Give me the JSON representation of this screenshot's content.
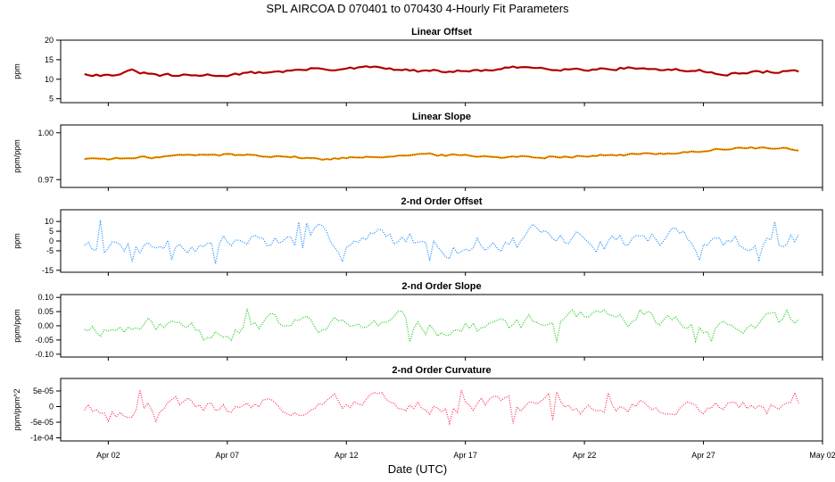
{
  "title": "SPL   AIRCOA D   070401 to 070430   4-Hourly Fit Parameters",
  "xlabel": "Date (UTC)",
  "chart_data": {
    "type": "line",
    "x_range": [
      "2007-03-31",
      "2007-05-02"
    ],
    "x_ticks": [
      "Apr 02",
      "Apr 07",
      "Apr 12",
      "Apr 17",
      "Apr 22",
      "Apr 27",
      "May 02"
    ],
    "x_tick_dates": [
      "2007-04-02",
      "2007-04-07",
      "2007-04-12",
      "2007-04-17",
      "2007-04-22",
      "2007-04-27",
      "2007-05-02"
    ],
    "data_start": "2007-04-01",
    "data_end": "2007-05-01",
    "sample_interval_hours": 4,
    "panels": [
      {
        "title": "Linear Offset",
        "ylabel": "ppm",
        "ylim": [
          4,
          20
        ],
        "yticks": [
          5,
          10,
          15,
          20
        ],
        "ytick_labels": [
          "5",
          "10",
          "15",
          "20"
        ],
        "color": "#cc0000",
        "line_color": "#000000",
        "anchors": [
          [
            "2007-04-01",
            11.5
          ],
          [
            "2007-04-02",
            11.0
          ],
          [
            "2007-04-03",
            12.0
          ],
          [
            "2007-04-04",
            11.0
          ],
          [
            "2007-04-05",
            10.8
          ],
          [
            "2007-04-06",
            11.0
          ],
          [
            "2007-04-07",
            11.2
          ],
          [
            "2007-04-08",
            11.5
          ],
          [
            "2007-04-09",
            12.0
          ],
          [
            "2007-04-10",
            12.3
          ],
          [
            "2007-04-11",
            12.8
          ],
          [
            "2007-04-12",
            12.5
          ],
          [
            "2007-04-13",
            13.0
          ],
          [
            "2007-04-14",
            12.5
          ],
          [
            "2007-04-15",
            12.0
          ],
          [
            "2007-04-16",
            12.0
          ],
          [
            "2007-04-17",
            12.0
          ],
          [
            "2007-04-18",
            12.3
          ],
          [
            "2007-04-19",
            12.8
          ],
          [
            "2007-04-20",
            13.0
          ],
          [
            "2007-04-21",
            12.8
          ],
          [
            "2007-04-22",
            12.5
          ],
          [
            "2007-04-23",
            12.8
          ],
          [
            "2007-04-24",
            13.0
          ],
          [
            "2007-04-25",
            12.5
          ],
          [
            "2007-04-26",
            12.3
          ],
          [
            "2007-04-27",
            12.0
          ],
          [
            "2007-04-28",
            11.5
          ],
          [
            "2007-04-29",
            11.6
          ],
          [
            "2007-04-30",
            12.0
          ],
          [
            "2007-05-01",
            12.0
          ]
        ],
        "noise": 0.35
      },
      {
        "title": "Linear Slope",
        "ylabel": "ppm/ppm",
        "ylim": [
          0.965,
          1.005
        ],
        "yticks": [
          0.97,
          1.0
        ],
        "ytick_labels": [
          "0.97",
          "1.00"
        ],
        "color": "#ff9900",
        "line_color": "#000000",
        "anchors": [
          [
            "2007-04-01",
            0.9835
          ],
          [
            "2007-04-03",
            0.9835
          ],
          [
            "2007-04-05",
            0.9855
          ],
          [
            "2007-04-07",
            0.986
          ],
          [
            "2007-04-09",
            0.9855
          ],
          [
            "2007-04-11",
            0.983
          ],
          [
            "2007-04-13",
            0.985
          ],
          [
            "2007-04-15",
            0.986
          ],
          [
            "2007-04-17",
            0.9855
          ],
          [
            "2007-04-19",
            0.9845
          ],
          [
            "2007-04-21",
            0.985
          ],
          [
            "2007-04-23",
            0.9855
          ],
          [
            "2007-04-25",
            0.9865
          ],
          [
            "2007-04-27",
            0.9885
          ],
          [
            "2007-04-29",
            0.9905
          ],
          [
            "2007-05-01",
            0.989
          ]
        ],
        "noise": 0.0007
      },
      {
        "title": "2-nd Order Offset",
        "ylabel": "ppm",
        "ylim": [
          -16,
          16
        ],
        "yticks": [
          -15,
          -5,
          0,
          5,
          10
        ],
        "ytick_labels": [
          "-15",
          "-5",
          "0",
          "5",
          "10"
        ],
        "color": "#1e90ff",
        "amplitude": 6,
        "spike_amplitude": 12,
        "seed": 7
      },
      {
        "title": "2-nd Order Slope",
        "ylabel": "ppm/ppm",
        "ylim": [
          -0.11,
          0.11
        ],
        "yticks": [
          -0.1,
          -0.05,
          0.0,
          0.05,
          0.1
        ],
        "ytick_labels": [
          "-0.10",
          "-0.05",
          "0.00",
          "0.05",
          "0.10"
        ],
        "color": "#22cc22",
        "amplitude": 0.035,
        "spike_amplitude": 0.065,
        "seed": 11
      },
      {
        "title": "2-nd Order Curvature",
        "ylabel": "ppm/ppm^2",
        "ylim": [
          -0.00011,
          9e-05
        ],
        "yticks": [
          -0.0001,
          -5e-05,
          0.0,
          5e-05
        ],
        "ytick_labels": [
          "-1e-04",
          "-5e-05",
          "0",
          "5e-05"
        ],
        "color": "#ff3355",
        "amplitude": 3e-05,
        "spike_amplitude": 5.5e-05,
        "seed": 19
      }
    ]
  }
}
